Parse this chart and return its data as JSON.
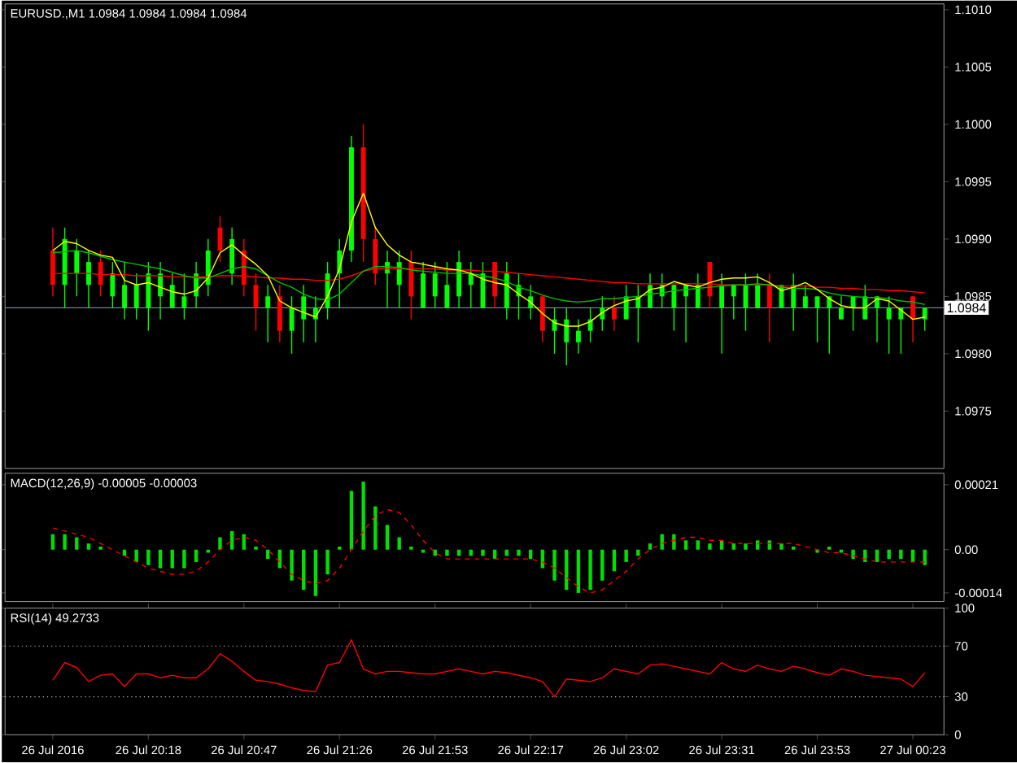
{
  "chart_data": [
    {
      "type": "candlestick",
      "title": "EURUSD.,M1  1.0984 1.0984 1.0984 1.0984",
      "categories": [
        null,
        null,
        null,
        null,
        null,
        null,
        null,
        null,
        null,
        null,
        null,
        null,
        null,
        null,
        null,
        null,
        null,
        null,
        null,
        null,
        null,
        null,
        null,
        null,
        null,
        null,
        null,
        null,
        null,
        null,
        null,
        null,
        null,
        null,
        null,
        null,
        null,
        null,
        null,
        null,
        null,
        null,
        null,
        null,
        null,
        null,
        null,
        null,
        null,
        null,
        null,
        null,
        null,
        null,
        null,
        null,
        null,
        null,
        null,
        null,
        null,
        null,
        null,
        null,
        null,
        null,
        null,
        null,
        null,
        null,
        null,
        null,
        null,
        null
      ],
      "ohlc": [
        [
          1.0989,
          1.0991,
          1.0985,
          1.0986
        ],
        [
          1.0986,
          1.0991,
          1.0984,
          1.099
        ],
        [
          1.0987,
          1.099,
          1.0985,
          1.0989
        ],
        [
          1.0986,
          1.0989,
          1.0984,
          1.0988
        ],
        [
          1.0988,
          1.0989,
          1.0985,
          1.0986
        ],
        [
          1.0985,
          1.0988,
          1.0984,
          1.0987
        ],
        [
          1.0984,
          1.0988,
          1.0983,
          1.0986
        ],
        [
          1.0984,
          1.0987,
          1.0983,
          1.0986
        ],
        [
          1.0984,
          1.0988,
          1.0982,
          1.0987
        ],
        [
          1.0985,
          1.0988,
          1.0983,
          1.0987
        ],
        [
          1.0984,
          1.0987,
          1.0984,
          1.0986
        ],
        [
          1.0984,
          1.0987,
          1.0983,
          1.0985
        ],
        [
          1.0985,
          1.0988,
          1.0984,
          1.0987
        ],
        [
          1.0986,
          1.099,
          1.0985,
          1.0989
        ],
        [
          1.0991,
          1.0992,
          1.0988,
          1.0989
        ],
        [
          1.0987,
          1.0991,
          1.0986,
          1.099
        ],
        [
          1.0989,
          1.099,
          1.0985,
          1.0986
        ],
        [
          1.0986,
          1.0987,
          1.0982,
          1.0984
        ],
        [
          1.0984,
          1.0986,
          1.0981,
          1.0985
        ],
        [
          1.0985,
          1.0986,
          1.0981,
          1.0982
        ],
        [
          1.0982,
          1.0985,
          1.098,
          1.0984
        ],
        [
          1.0983,
          1.0986,
          1.0981,
          1.0985
        ],
        [
          1.0983,
          1.0985,
          1.0981,
          1.0984
        ],
        [
          1.0984,
          1.0988,
          1.0983,
          1.0987
        ],
        [
          1.0987,
          1.099,
          1.0984,
          1.0989
        ],
        [
          1.0989,
          1.0999,
          1.0988,
          1.0998
        ],
        [
          1.0998,
          1.1,
          1.0988,
          1.099
        ],
        [
          1.099,
          1.0991,
          1.0986,
          1.0987
        ],
        [
          1.0987,
          1.0989,
          1.0984,
          1.0988
        ],
        [
          1.0986,
          1.0989,
          1.0984,
          1.0988
        ],
        [
          1.0988,
          1.0989,
          1.0983,
          1.0985
        ],
        [
          1.0984,
          1.0988,
          1.0984,
          1.0987
        ],
        [
          1.0985,
          1.0988,
          1.0984,
          1.0987
        ],
        [
          1.0984,
          1.0988,
          1.0984,
          1.0986
        ],
        [
          1.0985,
          1.0989,
          1.0984,
          1.0988
        ],
        [
          1.0986,
          1.0988,
          1.0984,
          1.0987
        ],
        [
          1.0984,
          1.0988,
          1.0984,
          1.0987
        ],
        [
          1.0988,
          1.0988,
          1.0984,
          1.0985
        ],
        [
          1.0984,
          1.0988,
          1.0983,
          1.0987
        ],
        [
          1.0985,
          1.0987,
          1.0983,
          1.0986
        ],
        [
          1.0984,
          1.0986,
          1.0983,
          1.0985
        ],
        [
          1.0985,
          1.0985,
          1.0981,
          1.0982
        ],
        [
          1.0982,
          1.0984,
          1.098,
          1.0983
        ],
        [
          1.0981,
          1.0984,
          1.0979,
          1.0983
        ],
        [
          1.0981,
          1.0983,
          1.098,
          1.0982
        ],
        [
          1.0982,
          1.0984,
          1.0981,
          1.0983
        ],
        [
          1.0983,
          1.0985,
          1.0982,
          1.0984
        ],
        [
          1.0984,
          1.0985,
          1.0982,
          1.0983
        ],
        [
          1.0983,
          1.0986,
          1.0983,
          1.0985
        ],
        [
          1.0984,
          1.0986,
          1.0981,
          1.0985
        ],
        [
          1.0984,
          1.0987,
          1.0984,
          1.0986
        ],
        [
          1.0985,
          1.0987,
          1.0984,
          1.0986
        ],
        [
          1.0984,
          1.0986,
          1.0982,
          1.0986
        ],
        [
          1.0985,
          1.0986,
          1.0981,
          1.0986
        ],
        [
          1.0984,
          1.0987,
          1.0984,
          1.0986
        ],
        [
          1.0988,
          1.0988,
          1.0984,
          1.0985
        ],
        [
          1.0984,
          1.0987,
          1.098,
          1.0986
        ],
        [
          1.0985,
          1.0986,
          1.0983,
          1.0986
        ],
        [
          1.0984,
          1.0987,
          1.0982,
          1.0986
        ],
        [
          1.0984,
          1.0987,
          1.0984,
          1.0986
        ],
        [
          1.0986,
          1.0987,
          1.0981,
          1.0984
        ],
        [
          1.0984,
          1.0986,
          1.0984,
          1.0986
        ],
        [
          1.0984,
          1.0987,
          1.0982,
          1.0986
        ],
        [
          1.0984,
          1.0986,
          1.0984,
          1.0985
        ],
        [
          1.0984,
          1.0985,
          1.0981,
          1.0985
        ],
        [
          1.0984,
          1.0985,
          1.098,
          1.0985
        ],
        [
          1.0983,
          1.0985,
          1.0983,
          1.0984
        ],
        [
          1.0984,
          1.0985,
          1.0982,
          1.0985
        ],
        [
          1.0983,
          1.0986,
          1.0983,
          1.0985
        ],
        [
          1.0984,
          1.0985,
          1.0981,
          1.0985
        ],
        [
          1.0983,
          1.0985,
          1.098,
          1.0984
        ],
        [
          1.0983,
          1.0984,
          1.098,
          1.0984
        ],
        [
          1.0985,
          1.0985,
          1.0981,
          1.0983
        ],
        [
          1.0983,
          1.0984,
          1.0982,
          1.0984
        ]
      ],
      "colors": [
        "#ff0000",
        "#00ff00",
        "#00ff00",
        "#00ff00",
        "#ff0000",
        "#00ff00",
        "#00ff00",
        "#00ff00",
        "#00ff00",
        "#00ff00",
        "#00ff00",
        "#00ff00",
        "#00ff00",
        "#00ff00",
        "#ff0000",
        "#00ff00",
        "#ff0000",
        "#ff0000",
        "#00ff00",
        "#ff0000",
        "#00ff00",
        "#00ff00",
        "#00ff00",
        "#00ff00",
        "#00ff00",
        "#00ff00",
        "#ff0000",
        "#ff0000",
        "#00ff00",
        "#00ff00",
        "#ff0000",
        "#00ff00",
        "#00ff00",
        "#00ff00",
        "#00ff00",
        "#00ff00",
        "#00ff00",
        "#ff0000",
        "#00ff00",
        "#00ff00",
        "#00ff00",
        "#ff0000",
        "#00ff00",
        "#00ff00",
        "#00ff00",
        "#00ff00",
        "#00ff00",
        "#ff0000",
        "#00ff00",
        "#00ff00",
        "#00ff00",
        "#00ff00",
        "#00ff00",
        "#00ff00",
        "#00ff00",
        "#ff0000",
        "#00ff00",
        "#00ff00",
        "#00ff00",
        "#00ff00",
        "#ff0000",
        "#00ff00",
        "#00ff00",
        "#00ff00",
        "#00ff00",
        "#00ff00",
        "#00ff00",
        "#00ff00",
        "#00ff00",
        "#00ff00",
        "#00ff00",
        "#00ff00",
        "#ff0000",
        "#00ff00"
      ],
      "series": [
        {
          "type": "line",
          "color": "#ff0000",
          "values": [
            1.0987,
            1.0987,
            1.0987,
            1.0987,
            1.09869,
            1.09869,
            1.09869,
            1.09868,
            1.09868,
            1.09868,
            1.09867,
            1.09867,
            1.09867,
            1.09867,
            1.09868,
            1.09868,
            1.09868,
            1.09867,
            1.09866,
            1.09866,
            1.09865,
            1.09865,
            1.09864,
            1.09864,
            1.09865,
            1.09868,
            1.09872,
            1.09874,
            1.09874,
            1.09874,
            1.09874,
            1.09874,
            1.09874,
            1.09873,
            1.09873,
            1.09873,
            1.09872,
            1.09872,
            1.09871,
            1.0987,
            1.09869,
            1.09868,
            1.09867,
            1.09866,
            1.09865,
            1.09864,
            1.09863,
            1.09862,
            1.09862,
            1.09861,
            1.09861,
            1.09861,
            1.09861,
            1.09861,
            1.09861,
            1.09861,
            1.0986,
            1.0986,
            1.0986,
            1.0986,
            1.0986,
            1.09859,
            1.09859,
            1.09859,
            1.09858,
            1.09858,
            1.09857,
            1.09857,
            1.09856,
            1.09856,
            1.09855,
            1.09855,
            1.09854,
            1.09853
          ]
        },
        {
          "type": "line",
          "color": "#00c000",
          "values": [
            1.09888,
            1.09889,
            1.0989,
            1.09888,
            1.09885,
            1.09882,
            1.0988,
            1.09878,
            1.09876,
            1.09874,
            1.09871,
            1.09868,
            1.09866,
            1.09866,
            1.0987,
            1.09874,
            1.09876,
            1.09874,
            1.09868,
            1.09862,
            1.09858,
            1.09852,
            1.09848,
            1.09847,
            1.09852,
            1.09862,
            1.09872,
            1.09876,
            1.09876,
            1.09875,
            1.09873,
            1.09872,
            1.09871,
            1.0987,
            1.0987,
            1.0987,
            1.09868,
            1.09866,
            1.09863,
            1.09858,
            1.09855,
            1.09851,
            1.09848,
            1.09846,
            1.09845,
            1.09846,
            1.09848,
            1.09848,
            1.09849,
            1.0985,
            1.09852,
            1.09853,
            1.09855,
            1.09856,
            1.09857,
            1.09858,
            1.09859,
            1.0986,
            1.0986,
            1.09861,
            1.0986,
            1.09858,
            1.09857,
            1.09857,
            1.09856,
            1.09853,
            1.09851,
            1.0985,
            1.09849,
            1.09849,
            1.09848,
            1.09846,
            1.09845,
            1.09843
          ]
        },
        {
          "type": "line",
          "color": "#ffff00",
          "values": [
            1.0989,
            1.09898,
            1.09896,
            1.0989,
            1.09886,
            1.09884,
            1.09864,
            1.0986,
            1.09862,
            1.09858,
            1.09854,
            1.09852,
            1.09855,
            1.09866,
            1.09888,
            1.09895,
            1.09886,
            1.09878,
            1.09868,
            1.09846,
            1.0984,
            1.09836,
            1.09832,
            1.0985,
            1.09874,
            1.09915,
            1.0994,
            1.0991,
            1.09895,
            1.09886,
            1.0988,
            1.09878,
            1.09876,
            1.09874,
            1.09873,
            1.0987,
            1.09865,
            1.09862,
            1.0986,
            1.09852,
            1.09845,
            1.09835,
            1.09827,
            1.09824,
            1.09824,
            1.09828,
            1.09836,
            1.09842,
            1.09846,
            1.09848,
            1.09856,
            1.09858,
            1.09863,
            1.0986,
            1.09858,
            1.09862,
            1.09865,
            1.09866,
            1.09866,
            1.09867,
            1.09862,
            1.09855,
            1.09858,
            1.09862,
            1.09856,
            1.09848,
            1.09842,
            1.0984,
            1.0984,
            1.09848,
            1.09846,
            1.09838,
            1.0983,
            1.09832
          ]
        }
      ],
      "ylim": [
        1.097,
        1.10105
      ],
      "yticks": [
        {
          "value": 1.0975,
          "label": "1.0975"
        },
        {
          "value": 1.098,
          "label": "1.0980"
        },
        {
          "value": 1.0985,
          "label": "1.0985"
        },
        {
          "value": 1.099,
          "label": "1.0990"
        },
        {
          "value": 1.0995,
          "label": "1.0995"
        },
        {
          "value": 1.1,
          "label": "1.1000"
        },
        {
          "value": 1.1005,
          "label": "1.1005"
        },
        {
          "value": 1.101,
          "label": "1.1010"
        }
      ],
      "ref_lines": [
        {
          "axis": "y",
          "value": 1.0984,
          "label": "1.0984",
          "color": "#778899",
          "line_style": "solid"
        }
      ],
      "tick_labels": "y"
    },
    {
      "type": "bar",
      "title": "MACD(12,26,9) -0.00005 -0.00003",
      "categories": [
        null,
        null,
        null,
        null,
        null,
        null,
        null,
        null,
        null,
        null,
        null,
        null,
        null,
        null,
        null,
        null,
        null,
        null,
        null,
        null,
        null,
        null,
        null,
        null,
        null,
        null,
        null,
        null,
        null,
        null,
        null,
        null,
        null,
        null,
        null,
        null,
        null,
        null,
        null,
        null,
        null,
        null,
        null,
        null,
        null,
        null,
        null,
        null,
        null,
        null,
        null,
        null,
        null,
        null,
        null,
        null,
        null,
        null,
        null,
        null,
        null,
        null,
        null,
        null,
        null,
        null,
        null,
        null,
        null,
        null,
        null,
        null,
        null,
        null
      ],
      "series": [
        {
          "type": "bar",
          "color": "#00e000",
          "values": [
            5e-05,
            5e-05,
            4e-05,
            2e-05,
            1e-05,
            0,
            -2e-05,
            -4e-05,
            -5e-05,
            -6e-05,
            -6e-05,
            -6e-05,
            -4e-05,
            -1e-05,
            4e-05,
            6e-05,
            5e-05,
            1e-05,
            -3e-05,
            -6e-05,
            -0.0001,
            -0.00013,
            -0.00015,
            -8e-05,
            1e-05,
            0.00019,
            0.00022,
            0.00014,
            8e-05,
            4e-05,
            1e-05,
            -1e-05,
            -2e-05,
            -2e-05,
            -2e-05,
            -2e-05,
            -2e-05,
            -3e-05,
            -2e-05,
            -2e-05,
            -3e-05,
            -6e-05,
            -0.0001,
            -0.00013,
            -0.00014,
            -0.00013,
            -0.0001,
            -7e-05,
            -4e-05,
            -2e-05,
            2e-05,
            5e-05,
            5e-05,
            3e-05,
            3e-05,
            2e-05,
            3e-05,
            2e-05,
            2e-05,
            3e-05,
            3e-05,
            2e-05,
            1e-05,
            0,
            -1e-05,
            1e-05,
            -1e-05,
            -3e-05,
            -4e-05,
            -4e-05,
            -3e-05,
            -3e-05,
            -4e-05,
            -5e-05
          ]
        },
        {
          "type": "line",
          "color": "#ff0000",
          "line_style": "dashed",
          "values": [
            7e-05,
            6e-05,
            5e-05,
            4e-05,
            2e-05,
            0,
            -2e-05,
            -4e-05,
            -6e-05,
            -7e-05,
            -8e-05,
            -8e-05,
            -7e-05,
            -4e-05,
            0,
            3e-05,
            4e-05,
            3e-05,
            0,
            -4e-05,
            -8e-05,
            -0.0001,
            -0.00011,
            -0.0001,
            -6e-05,
            0,
            6e-05,
            0.00011,
            0.00013,
            0.00012,
            8e-05,
            3e-05,
            -1e-05,
            -3e-05,
            -3e-05,
            -3e-05,
            -3e-05,
            -3e-05,
            -3e-05,
            -3e-05,
            -3e-05,
            -4e-05,
            -6e-05,
            -9e-05,
            -0.00012,
            -0.00014,
            -0.00013,
            -0.0001,
            -7e-05,
            -3e-05,
            0,
            2e-05,
            3e-05,
            4e-05,
            4e-05,
            3e-05,
            3e-05,
            2e-05,
            2e-05,
            2e-05,
            2e-05,
            2e-05,
            2e-05,
            1e-05,
            0,
            -1e-05,
            -1e-05,
            -2e-05,
            -3e-05,
            -4e-05,
            -4e-05,
            -4e-05,
            -4e-05,
            -4e-05
          ]
        }
      ],
      "ylim": [
        -0.000168,
        0.000247
      ],
      "yticks": [
        {
          "value": 0.00021,
          "label": "0.00021"
        },
        {
          "value": 0,
          "label": "0.00"
        },
        {
          "value": -0.00014,
          "label": "-0.00014"
        }
      ],
      "tick_labels": "y"
    },
    {
      "type": "line",
      "title": "RSI(14) 49.2733",
      "categories": [
        "26 Jul 2016",
        null,
        null,
        null,
        null,
        null,
        null,
        null,
        "26 Jul 20:18",
        null,
        null,
        null,
        null,
        null,
        null,
        null,
        "26 Jul 20:47",
        null,
        null,
        null,
        null,
        null,
        null,
        null,
        "26 Jul 21:26",
        null,
        null,
        null,
        null,
        null,
        null,
        null,
        "26 Jul 21:53",
        null,
        null,
        null,
        null,
        null,
        null,
        null,
        "26 Jul 22:17",
        null,
        null,
        null,
        null,
        null,
        null,
        null,
        "26 Jul 23:02",
        null,
        null,
        null,
        null,
        null,
        null,
        null,
        "26 Jul 23:31",
        null,
        null,
        null,
        null,
        null,
        null,
        null,
        "26 Jul 23:53",
        null,
        null,
        null,
        null,
        null,
        null,
        null,
        "27 Jul 00:23",
        null
      ],
      "series": [
        {
          "color": "#ff0000",
          "values": [
            43,
            57,
            53,
            42,
            47,
            48,
            38,
            48,
            48,
            45,
            47,
            45,
            45,
            52,
            64,
            58,
            50,
            43,
            42,
            40,
            37,
            35,
            34,
            55,
            57,
            75,
            52,
            48,
            50,
            50,
            49,
            48,
            48,
            50,
            52,
            50,
            48,
            50,
            49,
            47,
            45,
            42,
            30,
            44,
            43,
            42,
            45,
            52,
            50,
            48,
            55,
            56,
            54,
            52,
            50,
            48,
            57,
            52,
            50,
            55,
            52,
            50,
            54,
            52,
            49,
            47,
            52,
            50,
            47,
            46,
            45,
            44,
            38,
            49
          ]
        }
      ],
      "ylim": [
        0,
        100
      ],
      "yticks": [
        100,
        70,
        30,
        0
      ],
      "ref_lines": [
        {
          "axis": "y",
          "value": 70,
          "color": "#c0c0c0",
          "line_style": "dotted"
        },
        {
          "axis": "y",
          "value": 30,
          "color": "#c0c0c0",
          "line_style": "dotted"
        }
      ]
    }
  ]
}
